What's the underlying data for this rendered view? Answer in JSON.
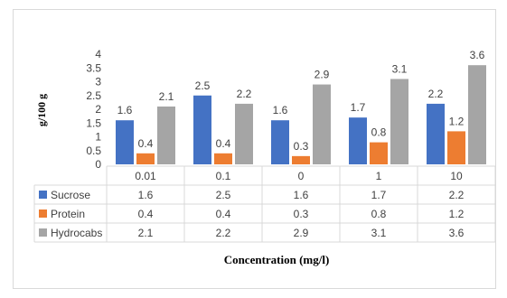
{
  "chart_data": {
    "type": "bar",
    "categories": [
      "0.01",
      "0.1",
      "0",
      "1",
      "10"
    ],
    "series": [
      {
        "name": "Sucrose",
        "values": [
          1.6,
          2.5,
          1.6,
          1.7,
          2.2
        ],
        "color": "#4472c4"
      },
      {
        "name": "Protein",
        "values": [
          0.4,
          0.4,
          0.3,
          0.8,
          1.2
        ],
        "color": "#ed7d31"
      },
      {
        "name": "Hydrocabs",
        "values": [
          2.1,
          2.2,
          2.9,
          3.1,
          3.6
        ],
        "color": "#a5a5a5"
      }
    ],
    "yticks": [
      "0",
      "0.5",
      "1",
      "1.5",
      "2",
      "2.5",
      "3",
      "3.5",
      "4"
    ],
    "ylim": [
      0,
      4
    ],
    "xlabel": "Concentration (mg/l)",
    "ylabel": "g/100 g",
    "grid": false,
    "data_table": true
  }
}
